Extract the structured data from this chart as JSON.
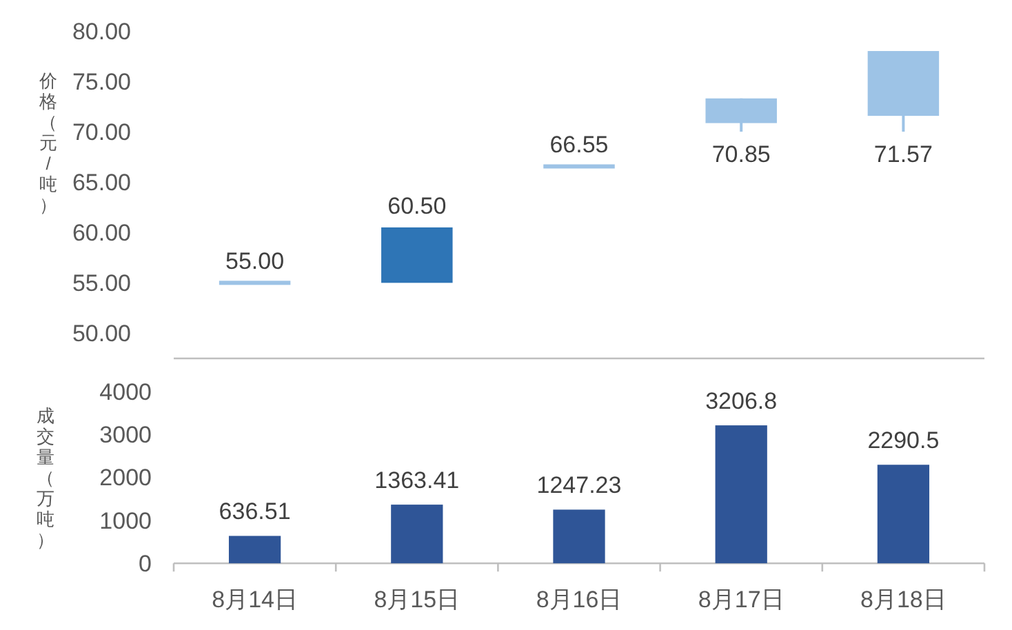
{
  "chart_data": [
    {
      "type": "candlestick",
      "ylabel": "价格（元/吨）",
      "categories": [
        "8月14日",
        "8月15日",
        "8月16日",
        "8月17日",
        "8月18日"
      ],
      "ohlc": [
        [
          55,
          55,
          55,
          55
        ],
        [
          55,
          60.5,
          55,
          60.5
        ],
        [
          66.55,
          66.55,
          66.55,
          66.55
        ],
        [
          73.3,
          73.3,
          70.0,
          70.85
        ],
        [
          78.0,
          78.0,
          70.0,
          71.57
        ]
      ],
      "colors": [
        "#9dc3e6",
        "#2e75b6",
        "#9dc3e6",
        "#9dc3e6",
        "#9dc3e6"
      ],
      "value_labels": [
        "55.00",
        "60.50",
        "66.55",
        "70.85",
        "71.57"
      ],
      "ylim": [
        47.5,
        80
      ],
      "yticks": [
        {
          "value": 50,
          "label": "50.00"
        },
        {
          "value": 55,
          "label": "55.00"
        },
        {
          "value": 60,
          "label": "60.00"
        },
        {
          "value": 65,
          "label": "65.00"
        },
        {
          "value": 70,
          "label": "70.00"
        },
        {
          "value": 75,
          "label": "75.00"
        },
        {
          "value": 80,
          "label": "80.00"
        }
      ],
      "tick_labels": "y"
    },
    {
      "type": "bar",
      "ylabel": "成交量（万吨）",
      "categories": [
        "8月14日",
        "8月15日",
        "8月16日",
        "8月17日",
        "8月18日"
      ],
      "values": [
        636.51,
        1363.41,
        1247.23,
        3206.8,
        2290.5
      ],
      "color": "#2f5597",
      "data_labels": true,
      "ylim": [
        0,
        4000
      ],
      "yticks": [
        0,
        1000,
        2000,
        3000,
        4000
      ]
    }
  ]
}
